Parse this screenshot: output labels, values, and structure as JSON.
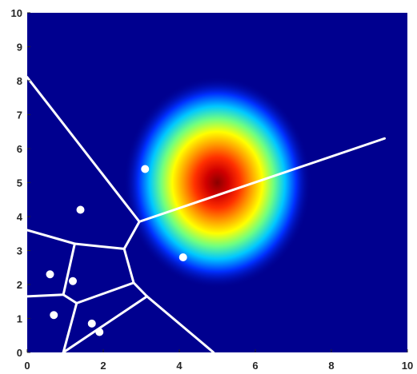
{
  "chart_data": {
    "type": "scatter",
    "title": "",
    "xlabel": "",
    "ylabel": "",
    "xlim": [
      0,
      10
    ],
    "ylim": [
      0,
      10
    ],
    "x_ticks": [
      "0",
      "2",
      "4",
      "6",
      "8",
      "10"
    ],
    "y_ticks": [
      "0",
      "1",
      "2",
      "3",
      "4",
      "5",
      "6",
      "7",
      "8",
      "9",
      "10"
    ],
    "grid": false,
    "background_color": "#00008f",
    "edge_color": "#ffffff",
    "point_color": "#ffffff",
    "heatmap": {
      "description": "gaussian intensity field (jet colormap)",
      "center": [
        5.0,
        5.0
      ],
      "sigma": [
        0.95,
        1.2
      ],
      "colormap": "jet"
    },
    "points": [
      {
        "x": 3.1,
        "y": 5.4
      },
      {
        "x": 1.4,
        "y": 4.2
      },
      {
        "x": 4.1,
        "y": 2.8
      },
      {
        "x": 0.6,
        "y": 2.3
      },
      {
        "x": 1.2,
        "y": 2.1
      },
      {
        "x": 0.7,
        "y": 1.1
      },
      {
        "x": 1.7,
        "y": 0.85
      },
      {
        "x": 1.9,
        "y": 0.6
      }
    ],
    "voronoi_edges": [
      [
        [
          0.0,
          8.1
        ],
        [
          2.95,
          3.85
        ]
      ],
      [
        [
          2.95,
          3.85
        ],
        [
          9.4,
          6.3
        ]
      ],
      [
        [
          2.95,
          3.85
        ],
        [
          2.55,
          3.05
        ]
      ],
      [
        [
          2.55,
          3.05
        ],
        [
          2.8,
          2.05
        ]
      ],
      [
        [
          2.55,
          3.05
        ],
        [
          1.25,
          3.2
        ]
      ],
      [
        [
          1.25,
          3.2
        ],
        [
          0.0,
          3.6
        ]
      ],
      [
        [
          1.25,
          3.2
        ],
        [
          0.95,
          1.7
        ]
      ],
      [
        [
          0.95,
          1.7
        ],
        [
          0.0,
          1.65
        ]
      ],
      [
        [
          0.95,
          1.7
        ],
        [
          1.3,
          1.45
        ]
      ],
      [
        [
          1.3,
          1.45
        ],
        [
          2.8,
          2.05
        ]
      ],
      [
        [
          1.3,
          1.45
        ],
        [
          0.95,
          0.0
        ]
      ],
      [
        [
          2.8,
          2.05
        ],
        [
          3.15,
          1.65
        ]
      ],
      [
        [
          3.15,
          1.65
        ],
        [
          0.95,
          0.0
        ]
      ],
      [
        [
          3.15,
          1.65
        ],
        [
          4.9,
          0.0
        ]
      ]
    ]
  }
}
